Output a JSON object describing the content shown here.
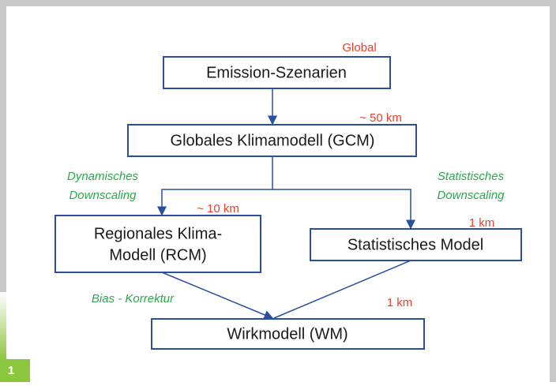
{
  "nodes": [
    {
      "label": "Emission-Szenarien"
    },
    {
      "label": "Globales Klimamodell (GCM)"
    },
    {
      "label": "Regionales Klima-"
    },
    {
      "label": "Modell (RCM)"
    },
    {
      "label": "Statistisches Model"
    },
    {
      "label": "Wirkmodell (WM)"
    }
  ],
  "scales": [
    "Global",
    "~ 50 km",
    "~ 10 km",
    "1 km",
    "1 km"
  ],
  "methods": [
    "Dynamisches",
    "Downscaling",
    "Statistisches",
    "Downscaling",
    "Bias - Korrektur"
  ],
  "figure_number": "1"
}
